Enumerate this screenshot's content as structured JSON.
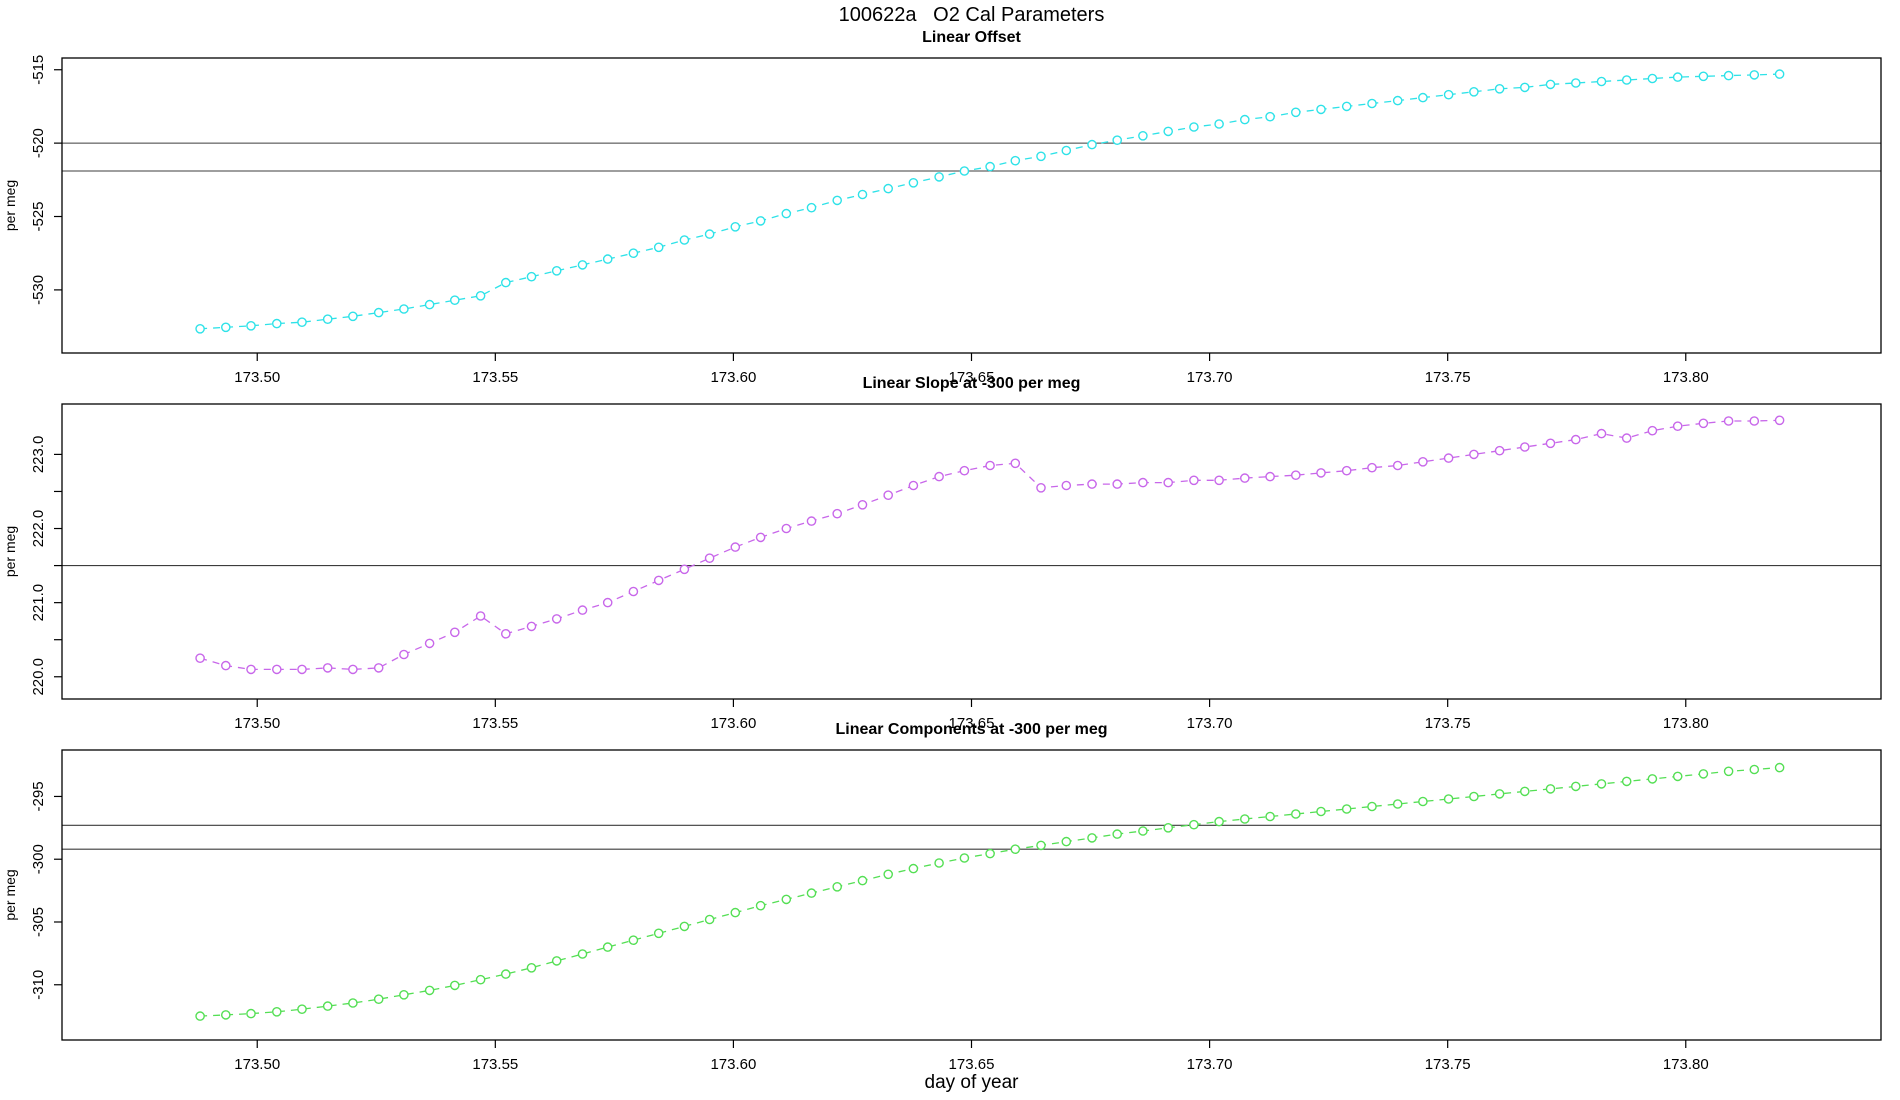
{
  "page": {
    "title": "100622a   O2 Cal Parameters",
    "xlabel": "day of year"
  },
  "chart_data": [
    {
      "type": "line",
      "title": "Linear Offset",
      "ylabel": "per meg",
      "series_name": "linear-offset",
      "color": "#2ee2e8",
      "marker": "open-circle",
      "line_style": "dashed",
      "legend": "none",
      "grid": "off",
      "xlim": [
        173.459,
        173.841
      ],
      "ylim": [
        -534.3,
        -514.2
      ],
      "x_ticks": {
        "values": [
          173.5,
          173.55,
          173.6,
          173.65,
          173.7,
          173.75,
          173.8
        ],
        "labels": [
          "173.50",
          "173.55",
          "173.60",
          "173.65",
          "173.70",
          "173.75",
          "173.80"
        ]
      },
      "y_ticks": {
        "values": [
          -515,
          -520,
          -525,
          -530
        ],
        "labels": [
          "-515",
          "-520",
          "-525",
          "-530"
        ],
        "minor": []
      },
      "ref_lines": [
        -520.0,
        -521.9
      ],
      "x": [
        173.488,
        173.4934,
        173.4987,
        173.5041,
        173.5094,
        173.5148,
        173.5201,
        173.5255,
        173.5308,
        173.5362,
        173.5415,
        173.5469,
        173.5522,
        173.5576,
        173.5629,
        173.5683,
        173.5736,
        173.579,
        173.5843,
        173.5897,
        173.595,
        173.6004,
        173.6057,
        173.6111,
        173.6164,
        173.6218,
        173.6271,
        173.6325,
        173.6378,
        173.6432,
        173.6485,
        173.6539,
        173.6592,
        173.6646,
        173.6699,
        173.6753,
        173.6806,
        173.686,
        173.6913,
        173.6967,
        173.702,
        173.7074,
        173.7127,
        173.7181,
        173.7234,
        173.7288,
        173.7341,
        173.7395,
        173.7448,
        173.7502,
        173.7555,
        173.7609,
        173.7662,
        173.7716,
        173.7769,
        173.7823,
        173.7876,
        173.793,
        173.7983,
        173.8037,
        173.809,
        173.8144,
        173.8197
      ],
      "y": [
        -532.65,
        -532.55,
        -532.45,
        -532.3,
        -532.2,
        -532.0,
        -531.8,
        -531.55,
        -531.3,
        -531.0,
        -530.7,
        -530.4,
        -529.5,
        -529.1,
        -528.7,
        -528.3,
        -527.9,
        -527.5,
        -527.1,
        -526.6,
        -526.2,
        -525.7,
        -525.3,
        -524.8,
        -524.4,
        -523.9,
        -523.5,
        -523.1,
        -522.7,
        -522.3,
        -521.9,
        -521.6,
        -521.2,
        -520.9,
        -520.5,
        -520.1,
        -519.8,
        -519.5,
        -519.2,
        -518.9,
        -518.7,
        -518.4,
        -518.2,
        -517.9,
        -517.7,
        -517.5,
        -517.3,
        -517.1,
        -516.9,
        -516.7,
        -516.5,
        -516.3,
        -516.2,
        -516.0,
        -515.9,
        -515.8,
        -515.7,
        -515.6,
        -515.5,
        -515.45,
        -515.4,
        -515.35,
        -515.3
      ]
    },
    {
      "type": "line",
      "title": "Linear Slope at -300 per meg",
      "ylabel": "per meg",
      "series_name": "linear-slope",
      "color": "#c867ea",
      "marker": "open-circle",
      "line_style": "dashed",
      "legend": "none",
      "grid": "off",
      "xlim": [
        173.459,
        173.841
      ],
      "ylim": [
        219.7,
        223.68
      ],
      "x_ticks": {
        "values": [
          173.5,
          173.55,
          173.6,
          173.65,
          173.7,
          173.75,
          173.8
        ],
        "labels": [
          "173.50",
          "173.55",
          "173.60",
          "173.65",
          "173.70",
          "173.75",
          "173.80"
        ]
      },
      "y_ticks": {
        "values": [
          220.0,
          221.0,
          222.0,
          223.0
        ],
        "labels": [
          "220.0",
          "221.0",
          "222.0",
          "223.0"
        ],
        "minor": [
          220.5,
          221.5,
          222.5
        ]
      },
      "ref_lines": [
        221.5
      ],
      "x": [
        173.488,
        173.4934,
        173.4987,
        173.5041,
        173.5094,
        173.5148,
        173.5201,
        173.5255,
        173.5308,
        173.5362,
        173.5415,
        173.5469,
        173.5522,
        173.5576,
        173.5629,
        173.5683,
        173.5736,
        173.579,
        173.5843,
        173.5897,
        173.595,
        173.6004,
        173.6057,
        173.6111,
        173.6164,
        173.6218,
        173.6271,
        173.6325,
        173.6378,
        173.6432,
        173.6485,
        173.6539,
        173.6592,
        173.6646,
        173.6699,
        173.6753,
        173.6806,
        173.686,
        173.6913,
        173.6967,
        173.702,
        173.7074,
        173.7127,
        173.7181,
        173.7234,
        173.7288,
        173.7341,
        173.7395,
        173.7448,
        173.7502,
        173.7555,
        173.7609,
        173.7662,
        173.7716,
        173.7769,
        173.7823,
        173.7876,
        173.793,
        173.7983,
        173.8037,
        173.809,
        173.8144,
        173.8197
      ],
      "y": [
        220.25,
        220.15,
        220.1,
        220.1,
        220.1,
        220.12,
        220.1,
        220.12,
        220.3,
        220.45,
        220.6,
        220.82,
        220.58,
        220.68,
        220.78,
        220.9,
        221.0,
        221.15,
        221.3,
        221.45,
        221.6,
        221.75,
        221.88,
        222.0,
        222.1,
        222.2,
        222.32,
        222.45,
        222.58,
        222.7,
        222.78,
        222.85,
        222.88,
        222.55,
        222.58,
        222.6,
        222.6,
        222.62,
        222.62,
        222.65,
        222.65,
        222.68,
        222.7,
        222.72,
        222.75,
        222.78,
        222.82,
        222.85,
        222.9,
        222.95,
        223.0,
        223.05,
        223.1,
        223.15,
        223.2,
        223.28,
        223.22,
        223.32,
        223.38,
        223.42,
        223.45,
        223.45,
        223.46
      ]
    },
    {
      "type": "line",
      "title": "Linear Components at -300 per meg",
      "ylabel": "per meg",
      "series_name": "linear-components",
      "color": "#54df54",
      "marker": "open-circle",
      "line_style": "dashed",
      "legend": "none",
      "grid": "off",
      "xlim": [
        173.459,
        173.841
      ],
      "ylim": [
        -314.4,
        -291.3
      ],
      "x_ticks": {
        "values": [
          173.5,
          173.55,
          173.6,
          173.65,
          173.7,
          173.75,
          173.8
        ],
        "labels": [
          "173.50",
          "173.55",
          "173.60",
          "173.65",
          "173.70",
          "173.75",
          "173.80"
        ]
      },
      "y_ticks": {
        "values": [
          -295,
          -300,
          -305,
          -310
        ],
        "labels": [
          "-295",
          "-300",
          "-305",
          "-310"
        ],
        "minor": []
      },
      "ref_lines": [
        -297.3,
        -299.2
      ],
      "x": [
        173.488,
        173.4934,
        173.4987,
        173.5041,
        173.5094,
        173.5148,
        173.5201,
        173.5255,
        173.5308,
        173.5362,
        173.5415,
        173.5469,
        173.5522,
        173.5576,
        173.5629,
        173.5683,
        173.5736,
        173.579,
        173.5843,
        173.5897,
        173.595,
        173.6004,
        173.6057,
        173.6111,
        173.6164,
        173.6218,
        173.6271,
        173.6325,
        173.6378,
        173.6432,
        173.6485,
        173.6539,
        173.6592,
        173.6646,
        173.6699,
        173.6753,
        173.6806,
        173.686,
        173.6913,
        173.6967,
        173.702,
        173.7074,
        173.7127,
        173.7181,
        173.7234,
        173.7288,
        173.7341,
        173.7395,
        173.7448,
        173.7502,
        173.7555,
        173.7609,
        173.7662,
        173.7716,
        173.7769,
        173.7823,
        173.7876,
        173.793,
        173.7983,
        173.8037,
        173.809,
        173.8144,
        173.8197
      ],
      "y": [
        -312.5,
        -312.4,
        -312.3,
        -312.15,
        -311.95,
        -311.7,
        -311.45,
        -311.15,
        -310.8,
        -310.45,
        -310.05,
        -309.6,
        -309.15,
        -308.65,
        -308.1,
        -307.55,
        -307.0,
        -306.45,
        -305.9,
        -305.35,
        -304.8,
        -304.25,
        -303.7,
        -303.2,
        -302.7,
        -302.2,
        -301.7,
        -301.2,
        -300.75,
        -300.3,
        -299.9,
        -299.55,
        -299.2,
        -298.9,
        -298.6,
        -298.3,
        -298.0,
        -297.75,
        -297.5,
        -297.25,
        -297.0,
        -296.8,
        -296.6,
        -296.4,
        -296.2,
        -296.0,
        -295.8,
        -295.6,
        -295.4,
        -295.2,
        -295.0,
        -294.8,
        -294.6,
        -294.4,
        -294.2,
        -294.0,
        -293.8,
        -293.6,
        -293.4,
        -293.2,
        -293.0,
        -292.85,
        -292.7
      ]
    }
  ]
}
